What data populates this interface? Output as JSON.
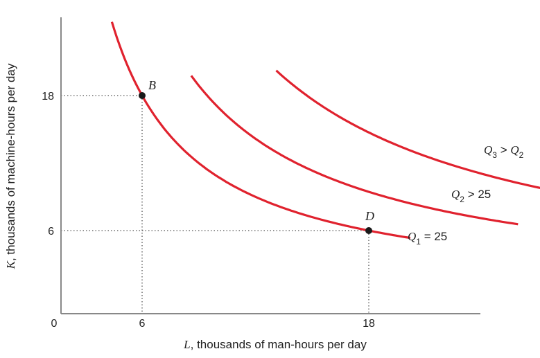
{
  "chart_data": {
    "type": "line",
    "title": "",
    "xlabel": {
      "var": "L",
      "rest": ", thousands of man-hours per day"
    },
    "ylabel": {
      "var": "K",
      "rest": ", thousands of machine-hours per day"
    },
    "origin_label": "0",
    "x_ticks": [
      "6",
      "18"
    ],
    "y_ticks": [
      "18",
      "6"
    ],
    "xlim": [
      0,
      28
    ],
    "ylim": [
      0,
      27
    ],
    "series": [
      {
        "name": "Q1 = 25",
        "label": {
          "var": "Q",
          "sub": "1",
          "rest": " = 25"
        },
        "k": 108,
        "x_range": [
          4.4,
          20.2
        ]
      },
      {
        "name": "Q2 > 25",
        "label": {
          "var": "Q",
          "sub": "2",
          "rest": " > 25"
        },
        "k": 170,
        "x_range": [
          8.6,
          25.9
        ]
      },
      {
        "name": "Q3 > Q2",
        "label": {
          "var": "Q",
          "sub": "3",
          "rest": " > ",
          "var2": "Q",
          "sub2": "2"
        },
        "k": 265,
        "x_range": [
          13.1,
          28
        ]
      }
    ],
    "points": [
      {
        "label": "B",
        "x": 6,
        "y": 18
      },
      {
        "label": "D",
        "x": 18,
        "y": 6
      }
    ],
    "colors": {
      "curve": "#e0222e",
      "axis": "#888888",
      "point": "#1a1a1a",
      "guide": "#555555"
    }
  }
}
